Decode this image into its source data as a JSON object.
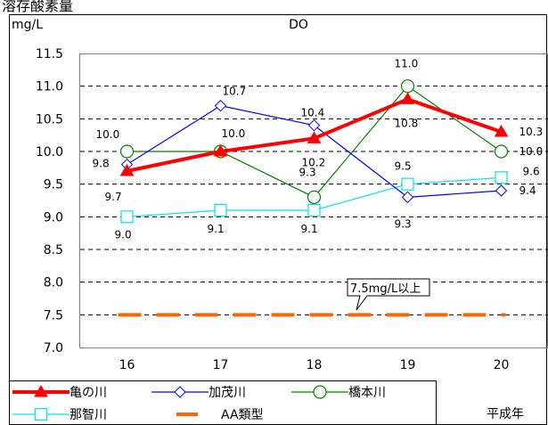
{
  "header_fragment": "溶存酸素量",
  "chart_data": {
    "type": "line",
    "title": "DO",
    "ylabel": "mg/L",
    "xlabel": "平成年",
    "categories": [
      "16",
      "17",
      "18",
      "19",
      "20"
    ],
    "ylim": [
      7.0,
      11.5
    ],
    "ytick_step": 0.5,
    "ytick_labels": [
      "7.0",
      "7.5",
      "8.0",
      "8.5",
      "9.0",
      "9.5",
      "10.0",
      "10.5",
      "11.0",
      "11.5"
    ],
    "grid": "horizontal-dashed",
    "series": [
      {
        "name": "亀の川",
        "values": [
          9.7,
          10.0,
          10.2,
          10.8,
          10.3
        ],
        "labels": [
          "9.7",
          "",
          "10.2",
          "10.8",
          "10.3"
        ],
        "color": "#ff0000",
        "marker": "filled-triangle"
      },
      {
        "name": "加茂川",
        "values": [
          9.8,
          10.7,
          10.4,
          9.3,
          9.4
        ],
        "labels": [
          "9.8",
          "10.7",
          "10.4",
          "9.3",
          "9.4"
        ],
        "color": "#0000ff",
        "marker": "diamond"
      },
      {
        "name": "橋本川",
        "values": [
          10.0,
          10.0,
          9.3,
          11.0,
          10.0
        ],
        "labels": [
          "10.0",
          "10.0",
          "9.3",
          "11.0",
          "10.0"
        ],
        "color": "#008000",
        "marker": "circle"
      },
      {
        "name": "那智川",
        "values": [
          9.0,
          9.1,
          9.1,
          9.5,
          9.6
        ],
        "labels": [
          "9.0",
          "9.1",
          "9.1",
          "9.5",
          "9.6"
        ],
        "color": "#00e5ee",
        "marker": "square"
      }
    ],
    "reference": {
      "name": "AA類型",
      "value": 7.5,
      "color": "#ff6600",
      "style": "dashed"
    },
    "annotation": "7.5mg/L以上",
    "legend_position": "bottom"
  }
}
